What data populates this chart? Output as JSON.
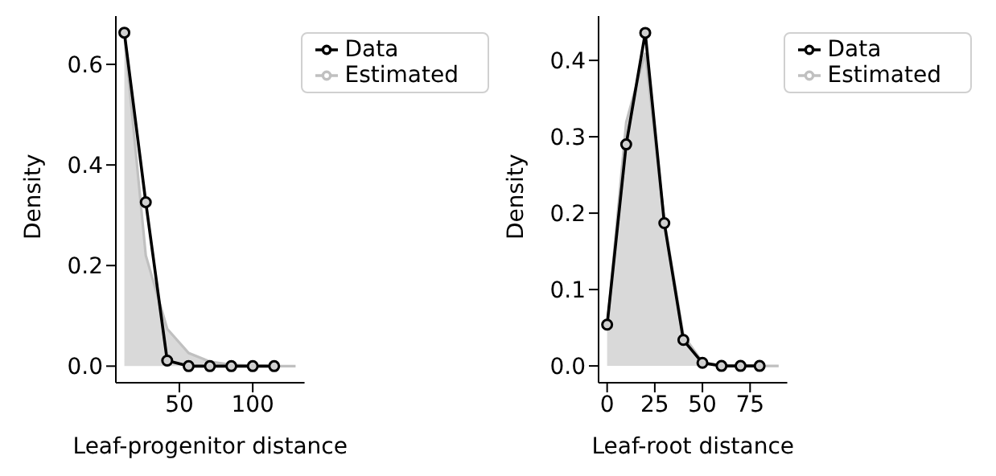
{
  "chart_data": [
    {
      "type": "line",
      "xlabel": "Leaf-progenitor distance",
      "ylabel": "Density",
      "xlim": [
        6.7,
        135.3
      ],
      "xticks": [
        50,
        100
      ],
      "ylim": [
        -0.033,
        0.696
      ],
      "yticks": [
        {
          "value": 0,
          "label": "0.0"
        },
        0.2,
        0.4,
        0.6
      ],
      "grid": false,
      "legend": "top right",
      "series": [
        {
          "name": "Data",
          "color": "#000000",
          "marker": "circle",
          "x": [
            12.5,
            27.1,
            41.7,
            56.3,
            70.8,
            85.4,
            100,
            114.6
          ],
          "values": [
            0.663,
            0.326,
            0.011,
            0,
            0,
            0,
            0,
            0
          ]
        },
        {
          "name": "Estimated",
          "type": "area",
          "color": "#c0c0c0",
          "marker": "none",
          "x": [
            12.5,
            27.1,
            41.7,
            56.3,
            70.8,
            85.4,
            100,
            114.6,
            129.2
          ],
          "values": [
            0.66,
            0.22,
            0.074,
            0.026,
            0.009,
            0.003,
            0.001,
            0,
            0
          ]
        }
      ]
    },
    {
      "type": "line",
      "xlabel": "Leaf-root distance",
      "ylabel": "Density",
      "xlim": [
        -4.5,
        94.5
      ],
      "xticks": [
        0,
        25,
        50,
        75
      ],
      "ylim": [
        -0.022,
        0.458
      ],
      "yticks": [
        {
          "value": 0,
          "label": "0.0"
        },
        0.1,
        0.2,
        0.3,
        0.4
      ],
      "grid": false,
      "legend": "top right",
      "series": [
        {
          "name": "Data",
          "color": "#000000",
          "marker": "circle",
          "x": [
            0,
            10,
            20,
            30,
            40,
            50,
            60,
            70,
            80
          ],
          "values": [
            0.054,
            0.29,
            0.436,
            0.187,
            0.034,
            0.004,
            0,
            0,
            0
          ]
        },
        {
          "name": "Estimated",
          "type": "area",
          "color": "#c0c0c0",
          "marker": "none",
          "x": [
            0,
            10,
            20,
            30,
            40,
            50,
            60,
            70,
            80,
            90
          ],
          "values": [
            0.05,
            0.319,
            0.41,
            0.19,
            0.04,
            0.005,
            0,
            0,
            0,
            0
          ]
        }
      ]
    }
  ]
}
